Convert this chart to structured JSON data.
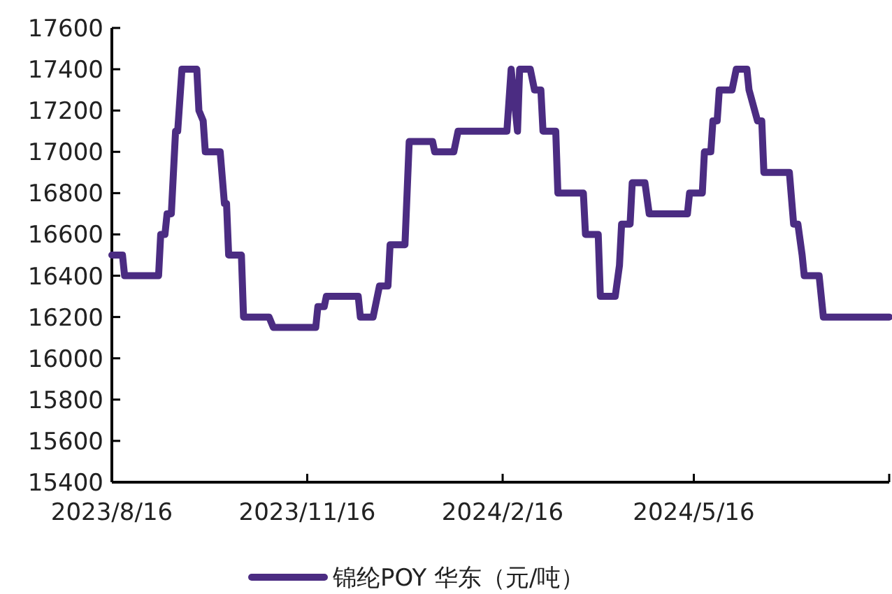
{
  "chart_data": {
    "type": "line",
    "legend": "bottom",
    "grid": false,
    "line_style": "solid",
    "xlim": [
      "2023-08-16",
      "2024-08-16"
    ],
    "xticks": [
      {
        "value": "2023-08-16",
        "label": "2023/8/16"
      },
      {
        "value": "2023-11-16",
        "label": "2023/11/16"
      },
      {
        "value": "2024-02-16",
        "label": "2024/2/16"
      },
      {
        "value": "2024-05-16",
        "label": "2024/5/16"
      },
      {
        "value": "2024-08-16",
        "label": null
      }
    ],
    "ylim": [
      15400,
      17600
    ],
    "yticks": [
      15400,
      15600,
      15800,
      16000,
      16200,
      16400,
      16600,
      16800,
      17000,
      17200,
      17400,
      17600
    ],
    "x": [
      "2023-08-16",
      "2023-08-21",
      "2023-08-22",
      "2023-09-07",
      "2023-09-08",
      "2023-09-10",
      "2023-09-11",
      "2023-09-13",
      "2023-09-15",
      "2023-09-16",
      "2023-09-18",
      "2023-09-25",
      "2023-09-26",
      "2023-09-28",
      "2023-09-29",
      "2023-10-06",
      "2023-10-08",
      "2023-10-09",
      "2023-10-10",
      "2023-10-16",
      "2023-10-17",
      "2023-10-29",
      "2023-10-31",
      "2023-11-20",
      "2023-11-21",
      "2023-11-24",
      "2023-11-25",
      "2023-12-10",
      "2023-12-11",
      "2023-12-17",
      "2023-12-20",
      "2023-12-24",
      "2023-12-25",
      "2024-01-01",
      "2024-01-03",
      "2024-01-14",
      "2024-01-15",
      "2024-01-24",
      "2024-01-26",
      "2024-02-18",
      "2024-02-20",
      "2024-02-23",
      "2024-02-24",
      "2024-02-29",
      "2024-03-02",
      "2024-03-05",
      "2024-03-06",
      "2024-03-12",
      "2024-03-13",
      "2024-03-25",
      "2024-03-26",
      "2024-04-01",
      "2024-04-02",
      "2024-04-09",
      "2024-04-11",
      "2024-04-12",
      "2024-04-16",
      "2024-04-17",
      "2024-04-23",
      "2024-04-25",
      "2024-05-13",
      "2024-05-14",
      "2024-05-20",
      "2024-05-21",
      "2024-05-24",
      "2024-05-25",
      "2024-05-27",
      "2024-05-28",
      "2024-06-03",
      "2024-06-05",
      "2024-06-10",
      "2024-06-11",
      "2024-06-15",
      "2024-06-17",
      "2024-06-18",
      "2024-06-30",
      "2024-07-02",
      "2024-07-04",
      "2024-07-06",
      "2024-07-07",
      "2024-07-14",
      "2024-07-16",
      "2024-08-16"
    ],
    "series": [
      {
        "name": "锦纶POY 华东（元/吨）",
        "color": "#4b2c82",
        "values": [
          16500,
          16500,
          16400,
          16400,
          16600,
          16600,
          16700,
          16700,
          17100,
          17100,
          17400,
          17400,
          17200,
          17150,
          17000,
          17000,
          16750,
          16750,
          16500,
          16500,
          16200,
          16200,
          16150,
          16150,
          16250,
          16250,
          16300,
          16300,
          16200,
          16200,
          16350,
          16350,
          16550,
          16550,
          17050,
          17050,
          17000,
          17000,
          17100,
          17100,
          17400,
          17100,
          17400,
          17400,
          17300,
          17300,
          17100,
          17100,
          16800,
          16800,
          16600,
          16600,
          16300,
          16300,
          16450,
          16650,
          16650,
          16850,
          16850,
          16700,
          16700,
          16800,
          16800,
          17000,
          17000,
          17150,
          17150,
          17300,
          17300,
          17400,
          17400,
          17300,
          17150,
          17150,
          16900,
          16900,
          16650,
          16650,
          16500,
          16400,
          16400,
          16200,
          16200
        ]
      }
    ]
  }
}
